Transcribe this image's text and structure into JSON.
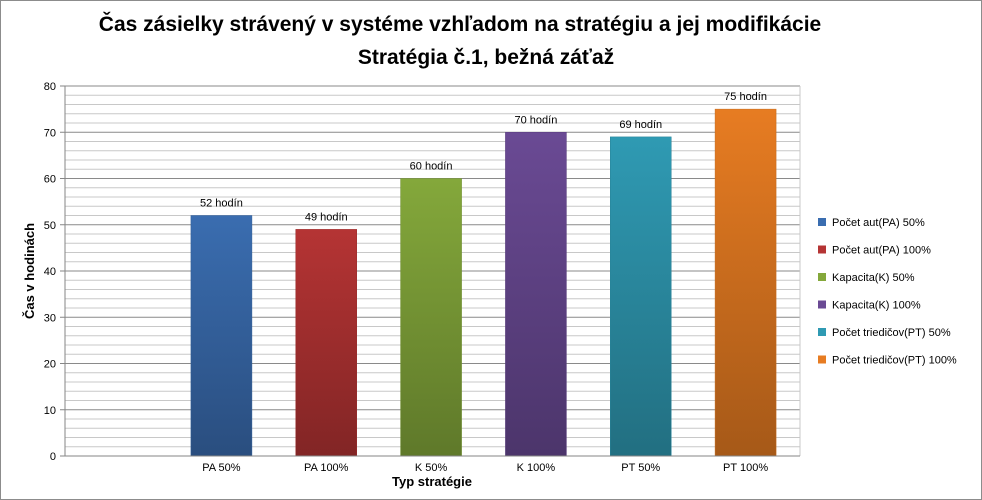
{
  "chart_data": {
    "type": "bar",
    "title": "Čas zásielky strávený v systéme vzhľadom na stratégiu a jej modifikácie",
    "subtitle": "Stratégia č.1,  bežná záťaž",
    "xlabel": "Typ stratégie",
    "ylabel": "Čas v hodinách",
    "ylim": [
      0,
      80
    ],
    "yticks": [
      0,
      10,
      20,
      30,
      40,
      50,
      60,
      70,
      80
    ],
    "grid": true,
    "legend_position": "right",
    "categories": [
      "PA 50%",
      "PA 100%",
      "K 50%",
      "K 100%",
      "PT 50%",
      "PT 100%"
    ],
    "values": [
      52,
      49,
      60,
      70,
      69,
      75
    ],
    "data_labels": [
      "52 hodín",
      "49 hodín",
      "60 hodín",
      "70 hodín",
      "69 hodín",
      "75 hodín"
    ],
    "legend": [
      "Počet aut(PA) 50%",
      "Počet aut(PA) 100%",
      "Kapacita(K) 50%",
      "Kapacita(K) 100%",
      "Počet triedičov(PT) 50%",
      "Počet triedičov(PT) 100%"
    ],
    "colors": [
      "#3a6db0",
      "#b53434",
      "#84a83b",
      "#6a4a94",
      "#2f9ab3",
      "#e77c22"
    ]
  }
}
